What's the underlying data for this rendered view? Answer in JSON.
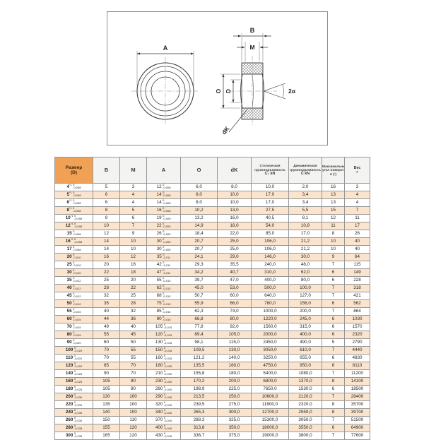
{
  "diagram": {
    "labels": {
      "a": "A",
      "b": "B",
      "m": "M",
      "o": "O",
      "d": "D",
      "two_alpha": "2α",
      "dk": "dK"
    }
  },
  "table": {
    "tol_hi": "0",
    "headers": {
      "size": [
        "Размер",
        "(D)"
      ],
      "b": "B",
      "m": "M",
      "a": "A",
      "o": "O",
      "dk": "dK",
      "static": [
        "Статическая",
        "грузоподъемность",
        "C₀ kN"
      ],
      "dynamic": [
        "Динамическая",
        "грузоподъемность",
        "C kN"
      ],
      "angle": [
        "Максимальный",
        "угол поворота",
        "α (°)"
      ],
      "weight": [
        "Вес",
        "г"
      ]
    },
    "rows": [
      [
        "4",
        "*1",
        "-0,008",
        "5",
        "3",
        "12",
        "-0,008",
        "6,0",
        "8,0",
        "10,0",
        "2,0",
        "16",
        "3"
      ],
      [
        "5",
        "*1",
        "-0,008",
        "6",
        "4",
        "14",
        "-0,008",
        "8,0",
        "10,0",
        "17,0",
        "3,4",
        "13",
        "4"
      ],
      [
        "6",
        "*1",
        "-0,008",
        "6",
        "4",
        "14",
        "-0,008",
        "8,0",
        "10,0",
        "17,0",
        "3,4",
        "13",
        "4"
      ],
      [
        "8",
        "*1",
        "-0,008",
        "8",
        "5",
        "16",
        "-0,008",
        "10,2",
        "13,0",
        "27,5",
        "5,5",
        "15",
        "7"
      ],
      [
        "10",
        "*1",
        "-0,008",
        "9",
        "6",
        "19",
        "-0,009",
        "13,2",
        "16,0",
        "40,5",
        "8,1",
        "12",
        "11"
      ],
      [
        "12",
        "*1",
        "-0,008",
        "10",
        "7",
        "22",
        "-0,009",
        "14,9",
        "18,0",
        "54,0",
        "10,8",
        "11",
        "17"
      ],
      [
        "15",
        "",
        "-0,008",
        "12",
        "9",
        "26",
        "-0,009",
        "18,4",
        "22,0",
        "85,0",
        "17,0",
        "8",
        "26"
      ],
      [
        "16",
        "*2",
        "-0,008",
        "14",
        "10",
        "30",
        "-0,009",
        "20,7",
        "25,0",
        "106,0",
        "21,2",
        "10",
        "40"
      ],
      [
        "17",
        "",
        "-0,008",
        "14",
        "10",
        "30",
        "-0,009",
        "20,7",
        "25,0",
        "106,0",
        "21,2",
        "10",
        "40"
      ],
      [
        "20",
        "",
        "-0,010",
        "16",
        "12",
        "35",
        "-0,011",
        "24,1",
        "29,0",
        "146,0",
        "30,0",
        "9",
        "64"
      ],
      [
        "25",
        "",
        "-0,010",
        "20",
        "16",
        "42",
        "-0,011",
        "29,3",
        "35,5",
        "240,0",
        "48,0",
        "7",
        "115"
      ],
      [
        "30",
        "",
        "-0,010",
        "22",
        "18",
        "47",
        "-0,011",
        "34,2",
        "40,7",
        "310,0",
        "62,0",
        "6",
        "149"
      ],
      [
        "35",
        "",
        "-0,012",
        "25",
        "20",
        "55",
        "-0,013",
        "39,7",
        "47,0",
        "400,0",
        "80,0",
        "6",
        "228"
      ],
      [
        "40",
        "",
        "-0,012",
        "28",
        "22",
        "62",
        "-0,013",
        "45,0",
        "53,0",
        "500,0",
        "100,0",
        "7",
        "318"
      ],
      [
        "45",
        "",
        "-0,012",
        "32",
        "25",
        "68",
        "-0,013",
        "50,7",
        "60,0",
        "640,0",
        "127,0",
        "7",
        "421"
      ],
      [
        "50",
        "",
        "-0,012",
        "35",
        "28",
        "75",
        "-0,013",
        "55,9",
        "66,0",
        "780,0",
        "156,0",
        "6",
        "562"
      ],
      [
        "55",
        "",
        "-0,015",
        "40",
        "32",
        "85",
        "-0,015",
        "62,3",
        "74,0",
        "1000,0",
        "200,0",
        "7",
        "864"
      ],
      [
        "60",
        "",
        "-0,015",
        "44",
        "36",
        "90",
        "-0,015",
        "66,8",
        "80,0",
        "1220,0",
        "245,0",
        "6",
        "1030"
      ],
      [
        "70",
        "",
        "-0,015",
        "49",
        "40",
        "105",
        "-0,015",
        "77,8",
        "92,0",
        "1560,0",
        "315,0",
        "6",
        "1570"
      ],
      [
        "80",
        "",
        "-0,015",
        "55",
        "45",
        "120",
        "-0,015",
        "89,4",
        "105,0",
        "2000,0",
        "400,0",
        "6",
        "2320"
      ],
      [
        "90",
        "",
        "-0,020",
        "60",
        "50",
        "130",
        "-0,018",
        "98,1",
        "115,0",
        "2450,0",
        "490,0",
        "5",
        "2790"
      ],
      [
        "100",
        "",
        "-0,020",
        "70",
        "55",
        "150",
        "-0,018",
        "109,5",
        "130,0",
        "3050,0",
        "610,0",
        "7",
        "4440"
      ],
      [
        "110",
        "",
        "-0,020",
        "70",
        "55",
        "160",
        "-0,025",
        "121,2",
        "140,0",
        "3250,0",
        "655,0",
        "6",
        "4830"
      ],
      [
        "120",
        "",
        "-0,020",
        "85",
        "70",
        "180",
        "-0,025",
        "135,5",
        "160,0",
        "4750,0",
        "950,0",
        "6",
        "8110"
      ],
      [
        "140",
        "",
        "-0,025",
        "90",
        "70",
        "210",
        "-0,030",
        "155,8",
        "180,0",
        "5400,0",
        "1080,0",
        "7",
        "11200"
      ],
      [
        "160",
        "",
        "-0,025",
        "105",
        "80",
        "230",
        "-0,030",
        "170,2",
        "200,0",
        "6800,0",
        "1370,0",
        "8",
        "14100"
      ],
      [
        "180",
        "",
        "-0,025",
        "105",
        "80",
        "260",
        "-0,030",
        "198,9",
        "225,0",
        "7650,0",
        "1530,0",
        "6",
        "18500"
      ],
      [
        "200",
        "",
        "-0,030",
        "130",
        "100",
        "290",
        "-0,035",
        "213,5",
        "250,0",
        "10600,0",
        "2120,0",
        "7",
        "28400"
      ],
      [
        "220",
        "",
        "-0,030",
        "135",
        "100",
        "320",
        "-0,040",
        "239,5",
        "275,0",
        "11600,0",
        "2320,0",
        "8",
        "35700"
      ],
      [
        "240",
        "",
        "-0,030",
        "140",
        "100",
        "340",
        "-0,040",
        "265,3",
        "300,0",
        "12700,0",
        "2550,0",
        "8",
        "39700"
      ],
      [
        "260",
        "",
        "-0,030",
        "150",
        "110",
        "370",
        "-0,040",
        "288,3",
        "325,0",
        "15300,0",
        "3050,0",
        "7",
        "51500"
      ],
      [
        "280",
        "",
        "-0,035",
        "155",
        "120",
        "400",
        "-0,040",
        "313,8",
        "350,0",
        "18000,0",
        "3550,0",
        "6",
        "64900"
      ],
      [
        "300",
        "",
        "-0,035",
        "165",
        "120",
        "430",
        "-0,045",
        "336,7",
        "375,0",
        "19000,0",
        "3800,0",
        "7",
        "77600"
      ]
    ]
  }
}
